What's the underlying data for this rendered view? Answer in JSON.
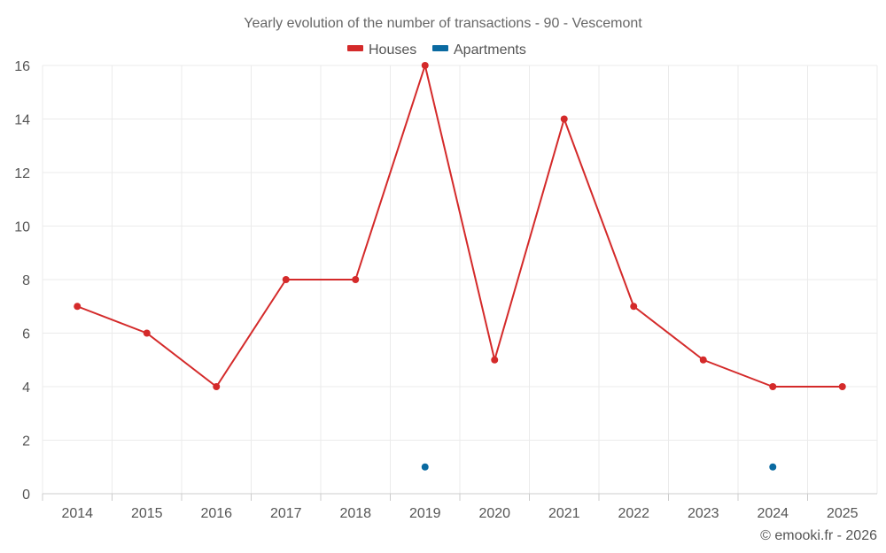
{
  "chart_data": {
    "type": "line",
    "title": "Yearly evolution of the number of transactions - 90 - Vescemont",
    "categories": [
      "2014",
      "2015",
      "2016",
      "2017",
      "2018",
      "2019",
      "2020",
      "2021",
      "2022",
      "2023",
      "2024",
      "2025"
    ],
    "series": [
      {
        "name": "Houses",
        "color": "#d42a2a",
        "values": [
          7,
          6,
          4,
          8,
          8,
          16,
          5,
          14,
          7,
          5,
          4,
          4
        ]
      },
      {
        "name": "Apartments",
        "color": "#0a6aa1",
        "values": [
          null,
          null,
          null,
          null,
          null,
          1,
          null,
          null,
          null,
          null,
          1,
          null
        ]
      }
    ],
    "ylim": [
      0,
      16
    ],
    "yticks": [
      0,
      2,
      4,
      6,
      8,
      10,
      12,
      14,
      16
    ],
    "grid": true,
    "legend_position": "top-center"
  },
  "credit": "© emooki.fr - 2026"
}
